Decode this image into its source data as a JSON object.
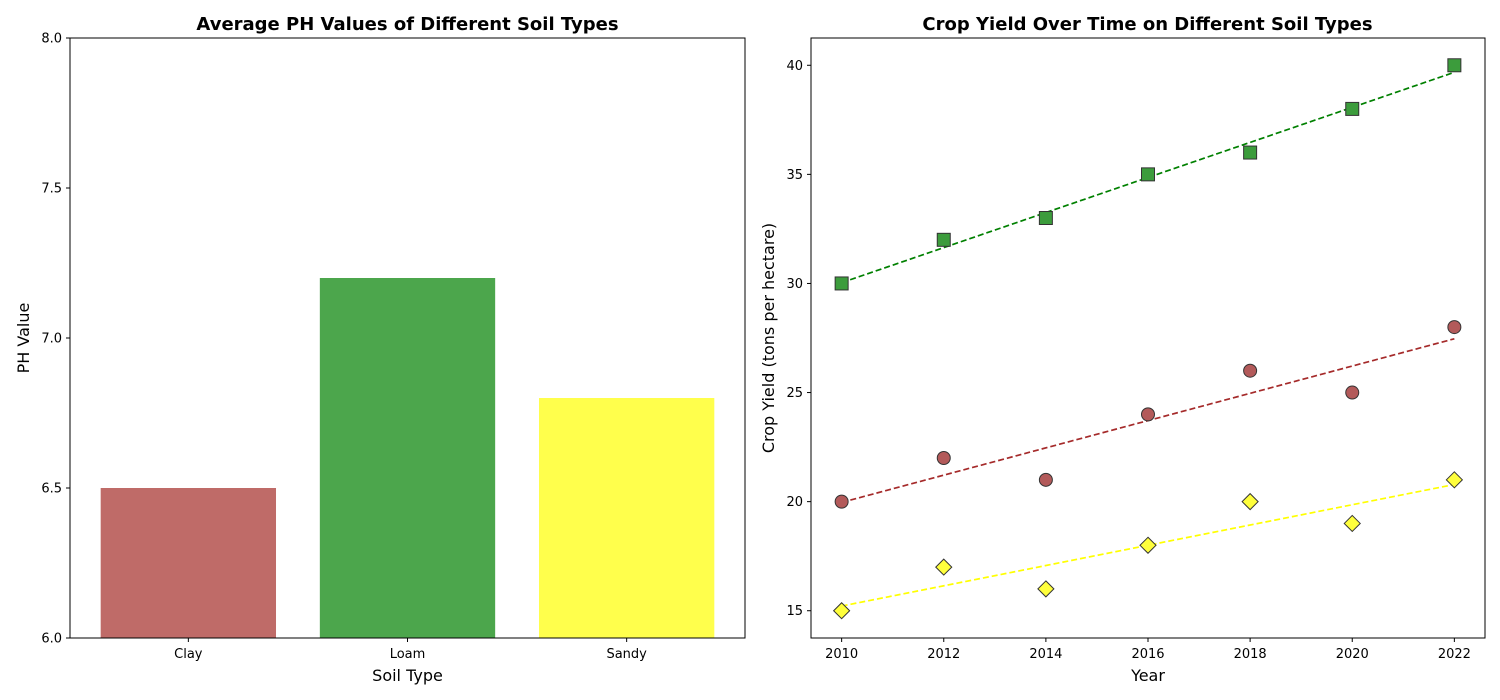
{
  "chart_data": [
    {
      "type": "bar",
      "title": "Average PH Values of Different Soil Types",
      "xlabel": "Soil Type",
      "ylabel": "PH Value",
      "categories": [
        "Clay",
        "Loam",
        "Sandy"
      ],
      "values": [
        6.5,
        7.2,
        6.8
      ],
      "colors": [
        "#bf6b68",
        "#4ca64c",
        "#ffff4c"
      ],
      "ylim": [
        6.0,
        8.0
      ],
      "yticks": [
        "6.0",
        "6.5",
        "7.0",
        "7.5",
        "8.0"
      ],
      "grid": false
    },
    {
      "type": "scatter",
      "title": "Crop Yield Over Time on Different Soil Types",
      "xlabel": "Year",
      "ylabel": "Crop Yield (tons per hectare)",
      "x": [
        2010,
        2012,
        2014,
        2016,
        2018,
        2020,
        2022
      ],
      "xlim": [
        2009.4,
        2022.6
      ],
      "xticks": [
        "2010",
        "2012",
        "2014",
        "2016",
        "2018",
        "2020",
        "2022"
      ],
      "ylim": [
        13.75,
        41.25
      ],
      "yticks": [
        "15",
        "20",
        "25",
        "30",
        "35",
        "40"
      ],
      "grid": false,
      "trendline": "dashed",
      "series": [
        {
          "values": [
            20,
            22,
            21,
            24,
            26,
            25,
            28
          ],
          "marker": "circle",
          "color": "#b35a5a",
          "line_color": "#a52a2a"
        },
        {
          "values": [
            30,
            32,
            33,
            35,
            36,
            38,
            40
          ],
          "marker": "square",
          "color": "#3c9c3c",
          "line_color": "#008000"
        },
        {
          "values": [
            15,
            17,
            16,
            18,
            20,
            19,
            21
          ],
          "marker": "diamond",
          "color": "#ffff3c",
          "line_color": "#ffff00"
        }
      ]
    }
  ]
}
